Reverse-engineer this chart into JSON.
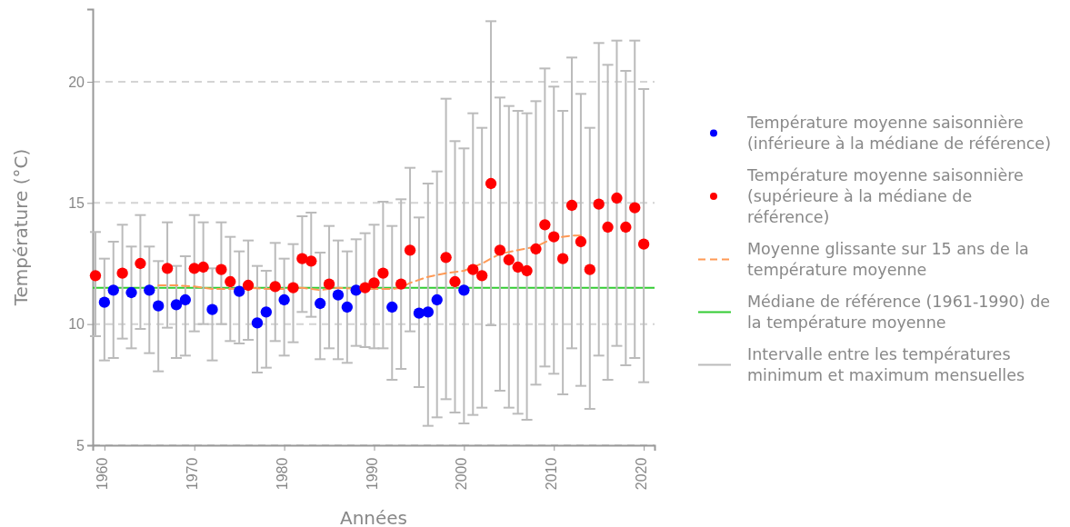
{
  "chart_data": {
    "type": "scatter",
    "xlabel": "Années",
    "ylabel": "Température (°C)",
    "xlim": [
      1958.7,
      2021.2
    ],
    "xticks": [
      1960,
      1970,
      1980,
      1990,
      2000,
      2010,
      2020
    ],
    "ylim": [
      5,
      23
    ],
    "yticks": [
      5,
      10,
      15,
      20
    ],
    "grid": "y",
    "legend": "right",
    "marker": "circle",
    "series": [
      {
        "name": "Température moyenne saisonnière (inférieure à la médiane de référence)",
        "color": "#0000ff",
        "x": [
          1960,
          1961,
          1963,
          1965,
          1966,
          1968,
          1969,
          1972,
          1975,
          1977,
          1978,
          1980,
          1984,
          1986,
          1987,
          1988,
          1992,
          1995,
          1996,
          1997,
          2000
        ],
        "values": [
          10.9,
          11.4,
          11.3,
          11.4,
          10.75,
          10.8,
          11.0,
          10.6,
          11.35,
          10.05,
          10.5,
          11.0,
          10.85,
          11.2,
          10.7,
          11.4,
          10.7,
          10.45,
          10.5,
          11.0,
          11.4
        ],
        "errors": [
          [
            8.5,
            12.7
          ],
          [
            8.6,
            13.4
          ],
          [
            9.0,
            13.2
          ],
          [
            8.8,
            13.2
          ],
          [
            8.05,
            12.6
          ],
          [
            8.6,
            12.4
          ],
          [
            8.7,
            12.8
          ],
          [
            8.5,
            12.3
          ],
          [
            9.2,
            13.0
          ],
          [
            8.0,
            12.4
          ],
          [
            8.2,
            12.2
          ],
          [
            8.7,
            12.7
          ],
          [
            8.55,
            12.95
          ],
          [
            8.55,
            13.45
          ],
          [
            8.4,
            13.0
          ],
          [
            9.1,
            13.5
          ],
          [
            7.7,
            14.05
          ],
          [
            7.4,
            14.4
          ],
          [
            5.8,
            15.8
          ],
          [
            6.15,
            16.3
          ],
          [
            5.9,
            17.25
          ]
        ]
      },
      {
        "name": "Température moyenne saisonnière (supérieure à la médiane de référence)",
        "color": "#ff0000",
        "x": [
          1959,
          1962,
          1964,
          1967,
          1970,
          1971,
          1973,
          1974,
          1976,
          1979,
          1981,
          1982,
          1983,
          1985,
          1989,
          1990,
          1991,
          1993,
          1994,
          1998,
          1999,
          2001,
          2002,
          2003,
          2004,
          2005,
          2006,
          2007,
          2008,
          2009,
          2010,
          2011,
          2012,
          2013,
          2014,
          2015,
          2016,
          2017,
          2018,
          2019,
          2020
        ],
        "values": [
          12.0,
          12.1,
          12.5,
          12.3,
          12.3,
          12.35,
          12.25,
          11.75,
          11.6,
          11.55,
          11.5,
          12.7,
          12.6,
          11.65,
          11.5,
          11.7,
          12.1,
          11.65,
          13.05,
          12.75,
          11.75,
          12.25,
          12.0,
          15.8,
          13.05,
          12.65,
          12.35,
          12.2,
          13.1,
          14.1,
          13.6,
          12.7,
          14.9,
          13.4,
          12.25,
          14.95,
          14.0,
          15.2,
          14.0,
          14.8,
          13.3
        ],
        "errors": [
          [
            9.5,
            13.8
          ],
          [
            9.4,
            14.1
          ],
          [
            9.8,
            14.5
          ],
          [
            9.85,
            14.2
          ],
          [
            9.7,
            14.5
          ],
          [
            10.0,
            14.2
          ],
          [
            10.0,
            14.2
          ],
          [
            9.3,
            13.6
          ],
          [
            9.35,
            13.45
          ],
          [
            9.3,
            13.35
          ],
          [
            9.25,
            13.3
          ],
          [
            10.5,
            14.45
          ],
          [
            10.3,
            14.6
          ],
          [
            9.0,
            14.05
          ],
          [
            9.05,
            13.75
          ],
          [
            9.0,
            14.1
          ],
          [
            9.0,
            15.05
          ],
          [
            8.15,
            15.15
          ],
          [
            9.7,
            16.45
          ],
          [
            6.9,
            19.3
          ],
          [
            6.35,
            17.55
          ],
          [
            6.25,
            18.7
          ],
          [
            6.55,
            18.1
          ],
          [
            9.95,
            22.5
          ],
          [
            7.25,
            19.35
          ],
          [
            6.55,
            19.0
          ],
          [
            6.3,
            18.8
          ],
          [
            6.05,
            18.7
          ],
          [
            7.5,
            19.2
          ],
          [
            8.25,
            20.55
          ],
          [
            7.95,
            19.8
          ],
          [
            7.1,
            18.8
          ],
          [
            9.0,
            21.0
          ],
          [
            7.45,
            19.5
          ],
          [
            6.5,
            18.1
          ],
          [
            8.7,
            21.6
          ],
          [
            7.7,
            20.7
          ],
          [
            9.1,
            21.7
          ],
          [
            8.3,
            20.45
          ],
          [
            8.6,
            21.7
          ],
          [
            7.6,
            19.7
          ]
        ]
      },
      {
        "name": "Moyenne glissante sur 15 ans de la température moyenne",
        "type": "line",
        "line_style": "dashed",
        "marker": "none",
        "color": "#ff9955",
        "x": [
          1966,
          1968,
          1970,
          1972,
          1974,
          1976,
          1978,
          1980,
          1982,
          1984,
          1986,
          1988,
          1990,
          1992,
          1993,
          1994,
          1996,
          1998,
          2000,
          2002,
          2004,
          2006,
          2008,
          2010,
          2012,
          2013
        ],
        "values": [
          11.6,
          11.6,
          11.55,
          11.45,
          11.45,
          11.5,
          11.45,
          11.45,
          11.5,
          11.4,
          11.5,
          11.45,
          11.45,
          11.45,
          11.5,
          11.7,
          11.95,
          12.1,
          12.2,
          12.5,
          12.9,
          13.05,
          13.2,
          13.55,
          13.65,
          13.65
        ]
      }
    ],
    "ref_lines": [
      {
        "axis": "y",
        "value": 11.5,
        "label": "Médiane de référence (1961-1990) de la température moyenne",
        "color": "#33cc33"
      }
    ],
    "annotations": [
      "Intervalle entre les températures minimum et maximum mensuelles"
    ]
  }
}
